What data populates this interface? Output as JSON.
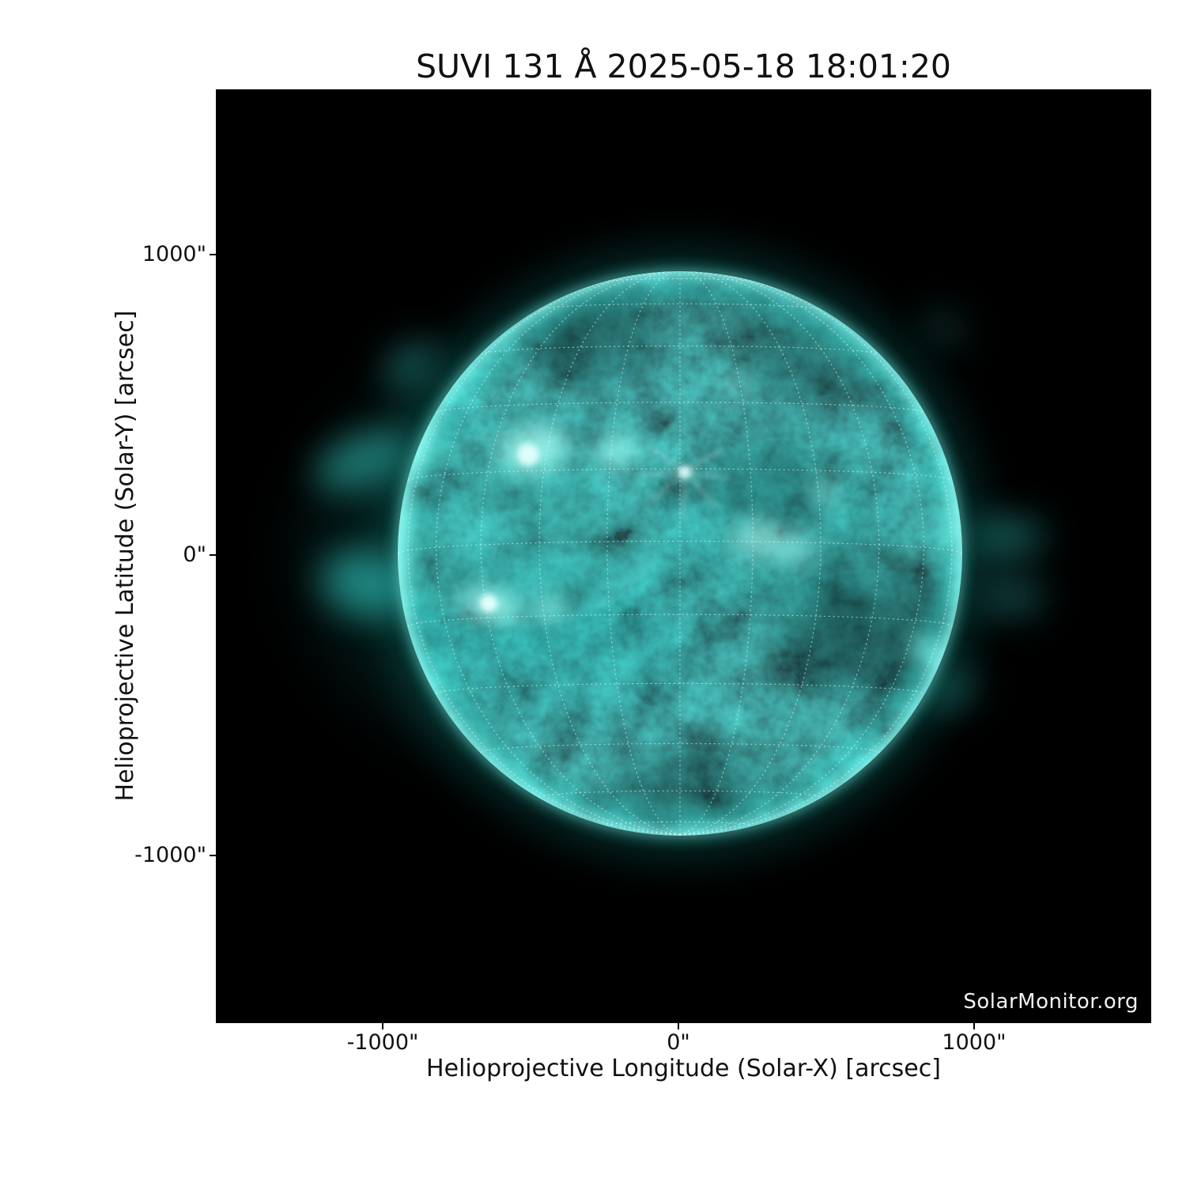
{
  "title": "SUVI 131 Å 2025-05-18 18:01:20",
  "watermark": "SolarMonitor.org",
  "axes": {
    "x": {
      "label": "Helioprojective Longitude (Solar-X) [arcsec]",
      "ticks": [
        "-1000\"",
        "0\"",
        "1000\""
      ]
    },
    "y": {
      "label": "Helioprojective Latitude (Solar-Y) [arcsec]",
      "ticks": [
        "1000\"",
        "0\"",
        "-1000\""
      ]
    }
  },
  "chart_data": {
    "type": "heatmap",
    "title": "SUVI 131 Å 2025-05-18 18:01:20",
    "instrument": "SUVI",
    "wavelength": "131 Å",
    "timestamp": "2025-05-18 18:01:20",
    "xlabel": "Helioprojective Longitude (Solar-X) [arcsec]",
    "ylabel": "Helioprojective Latitude (Solar-Y) [arcsec]",
    "x_ticks_arcsec": [
      -1000,
      0,
      1000
    ],
    "y_ticks_arcsec": [
      1000,
      0,
      -1000
    ],
    "xlim": [
      -1590,
      1610
    ],
    "ylim": [
      -1555,
      1545
    ],
    "solar_disk": {
      "center_arcsec": [
        0,
        0
      ],
      "radius_arcsec": 960
    },
    "grid": {
      "type": "heliographic",
      "spacing_deg": 15,
      "style": "dotted"
    },
    "legend": "none",
    "colormap": "cyan-teal on black",
    "watermark": "SolarMonitor.org"
  },
  "colors": {
    "page_background": "#ffffff",
    "plot_background": "#000000",
    "sun_base_teal": "#0b5350",
    "sun_bright": "#9efbf2",
    "limb_glow": "#54ece3",
    "grid_dots": "#e9f9f7",
    "text": "#111111",
    "watermark_text": "#f2f2f2"
  }
}
